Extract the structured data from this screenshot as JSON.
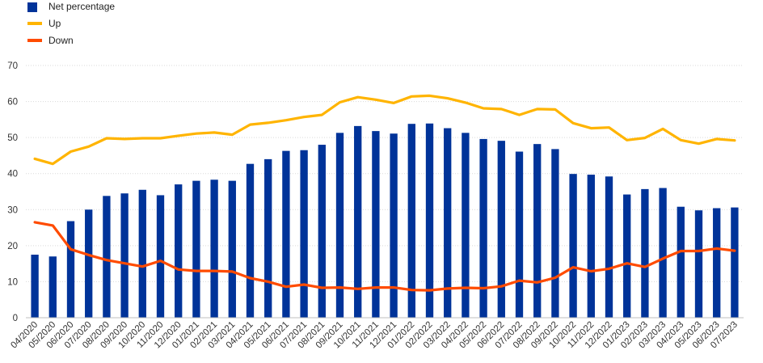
{
  "chart_data": {
    "type": "bar",
    "categories": [
      "04/2020",
      "05/2020",
      "06/2020",
      "07/2020",
      "08/2020",
      "09/2020",
      "10/2020",
      "11/2020",
      "12/2020",
      "01/2021",
      "02/2021",
      "03/2021",
      "04/2021",
      "05/2021",
      "06/2021",
      "07/2021",
      "08/2021",
      "09/2021",
      "10/2021",
      "11/2021",
      "12/2021",
      "01/2022",
      "02/2022",
      "03/2022",
      "04/2022",
      "05/2022",
      "06/2022",
      "07/2022",
      "08/2022",
      "09/2022",
      "10/2022",
      "11/2022",
      "12/2022",
      "01/2023",
      "02/2023",
      "03/2023",
      "04/2023",
      "05/2023",
      "06/2023",
      "07/2023"
    ],
    "series": [
      {
        "name": "Net percentage",
        "kind": "bar",
        "color": "#003399",
        "values": [
          17.5,
          17,
          26.8,
          30,
          33.8,
          34.5,
          35.5,
          34,
          37,
          38,
          38.3,
          38,
          42.7,
          44,
          46.3,
          46.5,
          48,
          51.3,
          53.2,
          51.8,
          51.1,
          53.8,
          53.9,
          52.6,
          51.3,
          49.6,
          49.1,
          46.1,
          48.2,
          46.8,
          39.9,
          39.7,
          39.2,
          34.2,
          35.7,
          36,
          30.8,
          29.8,
          30.4,
          30.6
        ]
      },
      {
        "name": "Up",
        "kind": "line",
        "color": "#ffb400",
        "values": [
          44.1,
          42.7,
          46.1,
          47.5,
          49.8,
          49.6,
          49.8,
          49.8,
          50.5,
          51.1,
          51.4,
          50.8,
          53.6,
          54.1,
          54.8,
          55.7,
          56.3,
          59.8,
          61.2,
          60.5,
          59.6,
          61.4,
          61.6,
          60.9,
          59.7,
          58.1,
          57.9,
          56.3,
          57.9,
          57.8,
          54,
          52.6,
          52.8,
          49.3,
          49.9,
          52.4,
          49.3,
          48.3,
          49.6,
          49.2
        ]
      },
      {
        "name": "Down",
        "kind": "line",
        "color": "#ff4b00",
        "values": [
          26.5,
          25.6,
          19,
          17.4,
          16,
          15.1,
          14.2,
          15.8,
          13.4,
          13,
          13,
          12.8,
          11,
          10,
          8.6,
          9.2,
          8.3,
          8.4,
          8,
          8.4,
          8.4,
          7.7,
          7.6,
          8.1,
          8.3,
          8.2,
          8.7,
          10.3,
          9.8,
          11.1,
          14,
          12.9,
          13.6,
          15.1,
          14.1,
          16.4,
          18.5,
          18.5,
          19.2,
          18.6
        ]
      }
    ],
    "title": "",
    "xlabel": "",
    "ylabel": "",
    "ylim": [
      0,
      70
    ],
    "yticks": [
      "0",
      "10",
      "20",
      "30",
      "40",
      "50",
      "60",
      "70"
    ],
    "grid": true,
    "legend_position": "top-left"
  }
}
